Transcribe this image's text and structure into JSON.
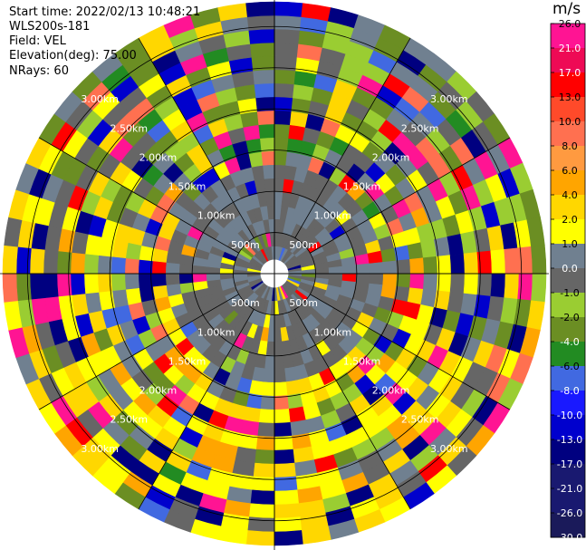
{
  "header": {
    "start_time": "Start time: 2022/02/13 10:48:21",
    "instrument": "WLS200s-181",
    "field": "Field: VEL",
    "elevation": "Elevation(deg): 75.00",
    "nrays": "NRays: 60"
  },
  "chart_data": {
    "type": "polar-ppi",
    "field": "VEL",
    "instrument": "WLS200s-181",
    "start_time": "2022/02/13 10:48:21",
    "elevation_deg": 75.0,
    "n_rays": 60,
    "range_rings_km": [
      0.5,
      1.0,
      1.5,
      2.0,
      2.5,
      3.0
    ],
    "ring_labels": [
      "500m",
      "1.00km",
      "1.50km",
      "2.00km",
      "2.50km",
      "3.00km"
    ],
    "max_range_km": 3.3,
    "colorbar": {
      "unit": "m/s",
      "ticks": [
        "26.0",
        "21.0",
        "17.0",
        "13.0",
        "10.0",
        "8.0",
        "6.0",
        "4.0",
        "2.0",
        "1.0",
        "0.0",
        "-1.0",
        "-2.0",
        "-4.0",
        "-6.0",
        "-8.0",
        "-10.0",
        "-13.0",
        "-17.0",
        "-21.0",
        "-26.0",
        "-30.0"
      ],
      "colors": [
        "#ff1493",
        "#ee0a55",
        "#ff0000",
        "#ff4a2a",
        "#ff7050",
        "#ff9a40",
        "#ffa500",
        "#ffd700",
        "#ffff00",
        "#708090",
        "#666666",
        "#9acd32",
        "#6b8e23",
        "#228b22",
        "#4169e1",
        "#1919ff",
        "#0000cd",
        "#000080",
        "#191970",
        "#191970",
        "#1a1a5a"
      ]
    },
    "sector_color_weights": {
      "north": {
        "#ff1493": 5,
        "#ff0000": 3,
        "#ff7050": 4,
        "#ffd700": 3,
        "#ffff00": 2,
        "#708090": 10,
        "#666666": 10,
        "#9acd32": 12,
        "#6b8e23": 16,
        "#228b22": 3,
        "#4169e1": 3,
        "#0000cd": 3,
        "#000080": 4
      },
      "south": {
        "#ff1493": 3,
        "#ff0000": 3,
        "#ff7050": 3,
        "#ffa500": 5,
        "#ffd700": 16,
        "#ffff00": 22,
        "#708090": 8,
        "#666666": 6,
        "#9acd32": 4,
        "#6b8e23": 2,
        "#4169e1": 3,
        "#0000cd": 3,
        "#000080": 6
      }
    }
  }
}
